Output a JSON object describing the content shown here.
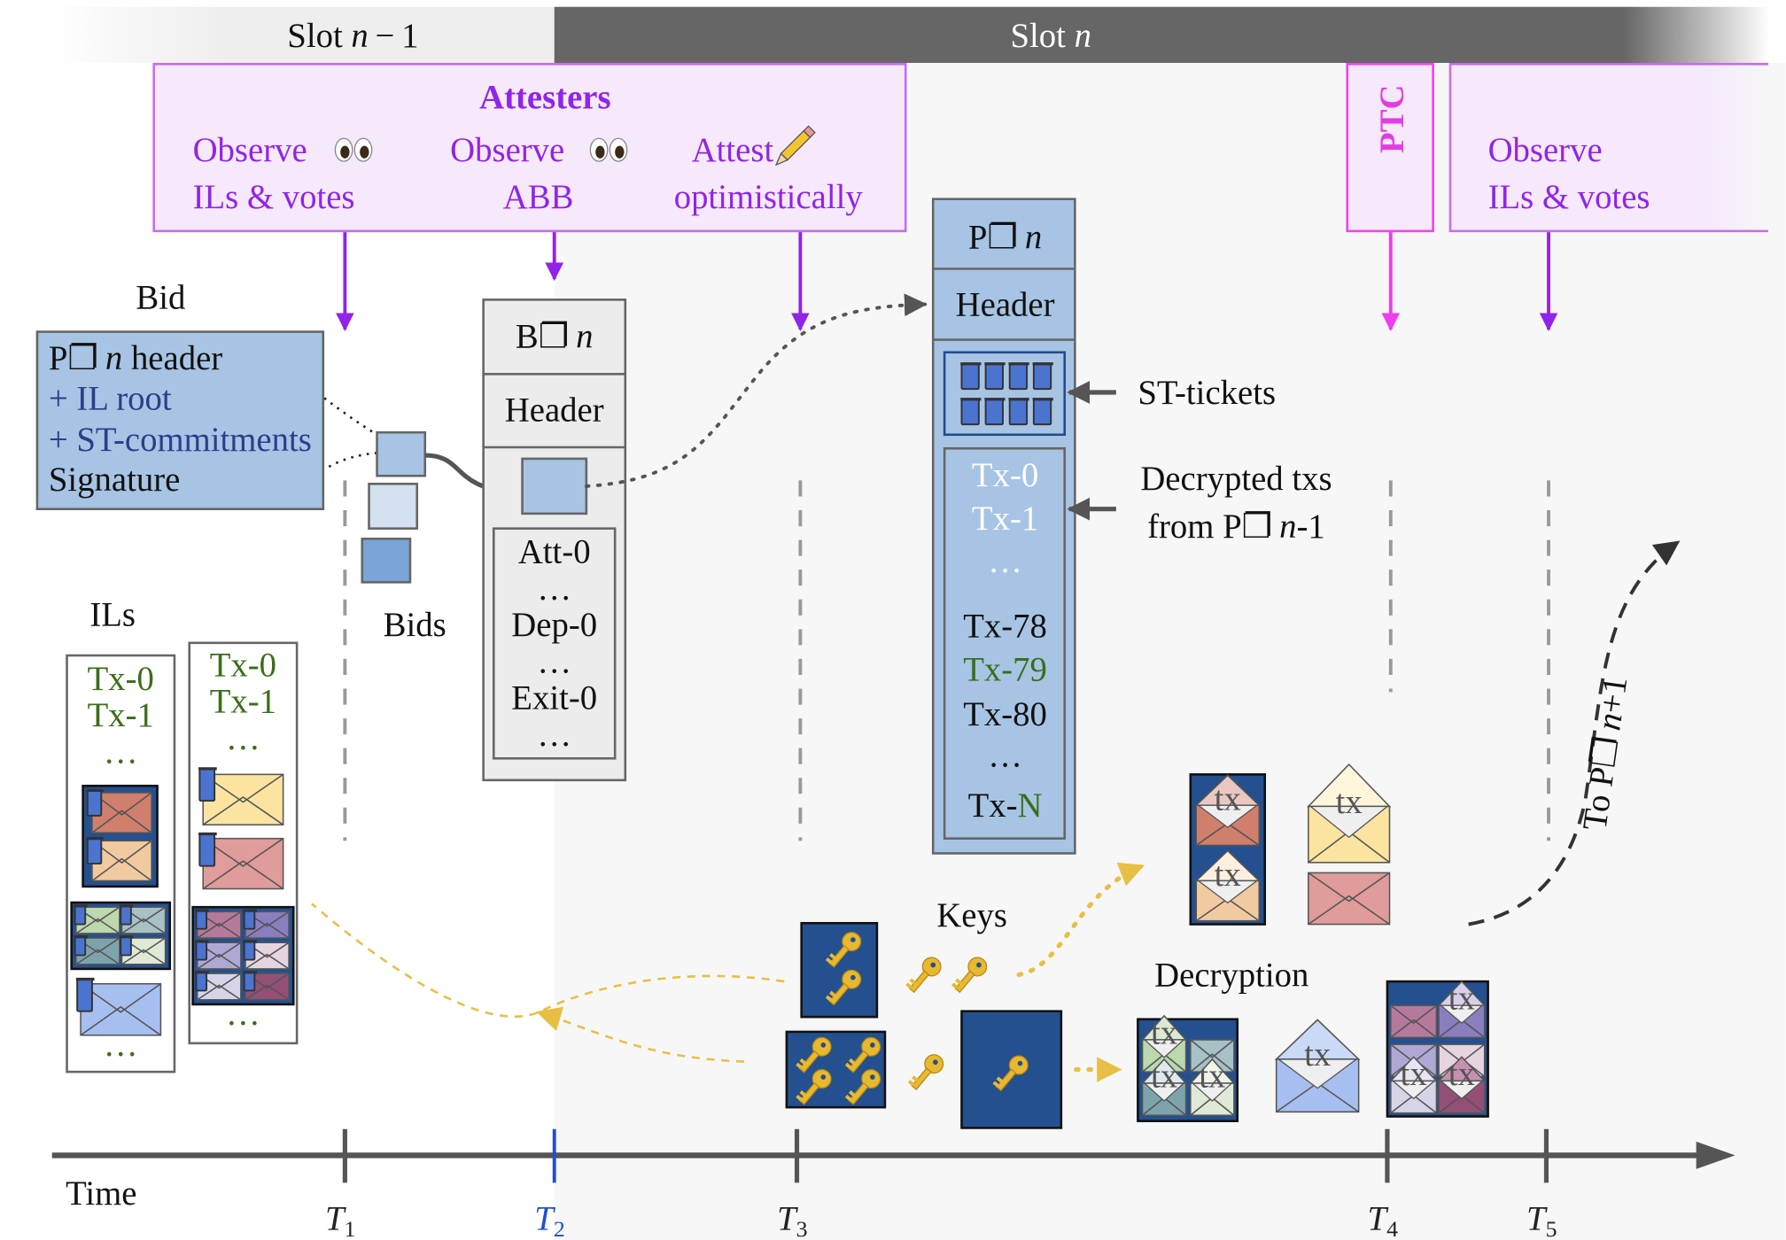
{
  "slots": {
    "prev_prefix": "Slot ",
    "prev_var": "n",
    "prev_suffix": " − 1",
    "curr_prefix": "Slot ",
    "curr_var": "n"
  },
  "attesters": {
    "title": "Attesters",
    "col1": [
      "Observe",
      "ILs & votes"
    ],
    "col2": [
      "Observe",
      "ABB"
    ],
    "col3": [
      "Attest",
      "optimistically"
    ]
  },
  "ptc": {
    "label": "PTC"
  },
  "observe_right": [
    "Observe",
    "ILs & votes"
  ],
  "bid": {
    "label": "Bid",
    "lines": {
      "p": "P",
      "box": "❐",
      "n": "n",
      "header": " header",
      "il_root": "+ IL root",
      "st_commitments": "+ ST-commitments",
      "signature": "Signature"
    },
    "bids_label": "Bids"
  },
  "beacon_block": {
    "prefix": "B",
    "box": "❐",
    "n": "n",
    "header": "Header",
    "items": [
      "Att-0",
      "…",
      "Dep-0",
      "…",
      "Exit-0",
      "…"
    ]
  },
  "payload": {
    "prefix": "P",
    "box": "❐",
    "n": "n",
    "header": "Header",
    "txs": [
      {
        "text": "Tx-0",
        "color": "white"
      },
      {
        "text": "Tx-1",
        "color": "white"
      },
      {
        "text": "…",
        "color": "white"
      },
      {
        "text": "Tx-78",
        "color": "black"
      },
      {
        "text": "Tx-79",
        "color": "green"
      },
      {
        "text": "Tx-80",
        "color": "black"
      },
      {
        "text": "…",
        "color": "black"
      }
    ],
    "last_tx_prefix": "Tx-",
    "last_tx_suffix": "N",
    "st_tickets_label": "ST-tickets",
    "decrypted_line1": "Decrypted txs",
    "decrypted_line2_prefix": "from P",
    "decrypted_box": "❐",
    "decrypted_n": "n",
    "decrypted_suffix": "-1"
  },
  "ils": {
    "label": "ILs",
    "col1": [
      "Tx-0",
      "Tx-1",
      "…",
      "…"
    ],
    "col2": [
      "Tx-0",
      "Tx-1",
      "…",
      "…"
    ]
  },
  "keys_label": "Keys",
  "decryption_label": "Decryption",
  "envelope_tag": "tx",
  "to_next": {
    "prefix": "To P",
    "box": "❐",
    "n": "n",
    "suffix": "+1"
  },
  "timeline": {
    "label": "Time",
    "ticks": [
      {
        "name": "T",
        "sub": "1",
        "color": "#222222"
      },
      {
        "name": "T",
        "sub": "2",
        "color": "#1f4fd1"
      },
      {
        "name": "T",
        "sub": "3",
        "color": "#222222"
      },
      {
        "name": "T",
        "sub": "4",
        "color": "#222222"
      },
      {
        "name": "T",
        "sub": "5",
        "color": "#222222"
      }
    ]
  },
  "colors": {
    "attester_purple": "#9124e8",
    "ptc_magenta": "#e23ce2",
    "block_blue": "#a7c4e4",
    "navy": "#24508f",
    "key_gold": "#e8b930",
    "tx_green": "#3a6e1a",
    "slot_dark": "#666666"
  }
}
